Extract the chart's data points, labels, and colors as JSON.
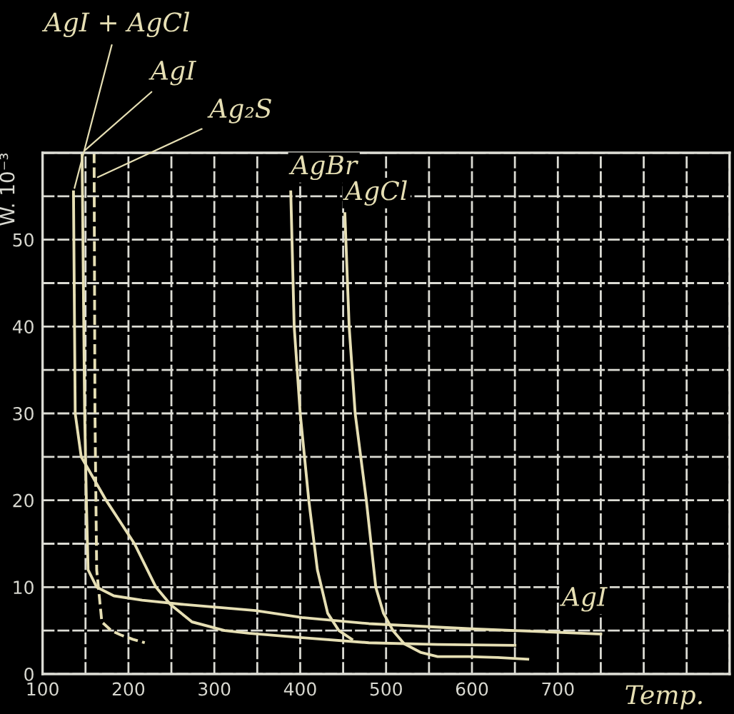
{
  "chart_data": {
    "type": "line",
    "xlabel": "Temp.",
    "ylabel": "W. 10⁻³",
    "series": [
      {
        "color": "#e6dfb4",
        "line_style": "solid",
        "x": [
          136,
          138,
          145,
          174,
          207,
          232,
          249,
          274,
          312,
          340,
          400,
          480,
          560,
          650
        ],
        "values": [
          55.5,
          30,
          25,
          20,
          15,
          10,
          8,
          6,
          5,
          4.7,
          4.2,
          3.6,
          3.4,
          3.3
        ]
      },
      {
        "color": "#e6dfb4",
        "line_style": "solid",
        "x": [
          146,
          149,
          151,
          153,
          163,
          183,
          216,
          265,
          348,
          402,
          480,
          600,
          750
        ],
        "values": [
          60,
          30,
          20,
          12,
          10,
          9,
          8.5,
          8,
          7.3,
          6.5,
          5.8,
          5.2,
          4.6
        ]
      },
      {
        "color": "#e6dfb4",
        "line_style": "dashed",
        "x": [
          160,
          161,
          163,
          169,
          180,
          191,
          205,
          219
        ],
        "values": [
          60,
          30,
          12,
          6,
          5,
          4.5,
          4,
          3.6
        ]
      },
      {
        "color": "#e6dfb4",
        "line_style": "solid",
        "x": [
          389,
          393,
          400,
          410,
          420,
          432,
          445,
          460
        ],
        "values": [
          55.5,
          40,
          30,
          20,
          12,
          7,
          5,
          4
        ]
      },
      {
        "color": "#e6dfb4",
        "line_style": "solid",
        "x": [
          452,
          457,
          464,
          477,
          488,
          497,
          508,
          521,
          540,
          560,
          596,
          630,
          665
        ],
        "values": [
          53,
          40,
          30,
          20,
          10,
          7,
          5,
          3.5,
          2.5,
          2,
          2,
          1.9,
          1.7
        ]
      }
    ],
    "annotations": [
      {
        "text": "AgI + AgCl",
        "x": 136,
        "y": 55.5
      },
      {
        "text": "AgI",
        "x": 146,
        "y": 60
      },
      {
        "text": "Ag₂S",
        "x": 160,
        "y": 57
      },
      {
        "text": "AgBr",
        "x": 389,
        "y": 55.5
      },
      {
        "text": "AgCl",
        "x": 452,
        "y": 53
      },
      {
        "text": "AgI",
        "x": 700,
        "y": 4.9
      }
    ],
    "xlim": [
      100,
      900
    ],
    "ylim": [
      0,
      60
    ],
    "xticks": [
      100,
      {
        "value": 150,
        "label": null
      },
      200,
      {
        "value": 250,
        "label": null
      },
      300,
      {
        "value": 350,
        "label": null
      },
      400,
      {
        "value": 450,
        "label": null
      },
      500,
      {
        "value": 550,
        "label": null
      },
      600,
      {
        "value": 650,
        "label": null
      },
      700,
      {
        "value": 750,
        "label": null
      },
      {
        "value": 800,
        "label": null
      },
      {
        "value": 850,
        "label": null
      },
      {
        "value": 900,
        "label": null
      }
    ],
    "yticks": [
      0,
      {
        "value": 5,
        "label": null
      },
      10,
      {
        "value": 15,
        "label": null
      },
      20,
      {
        "value": 25,
        "label": null
      },
      30,
      {
        "value": 35,
        "label": null
      },
      40,
      {
        "value": 45,
        "label": null
      },
      50,
      {
        "value": 55,
        "label": null
      },
      {
        "value": 60,
        "label": null
      }
    ],
    "grid": true,
    "legend": false,
    "marker": "none"
  }
}
